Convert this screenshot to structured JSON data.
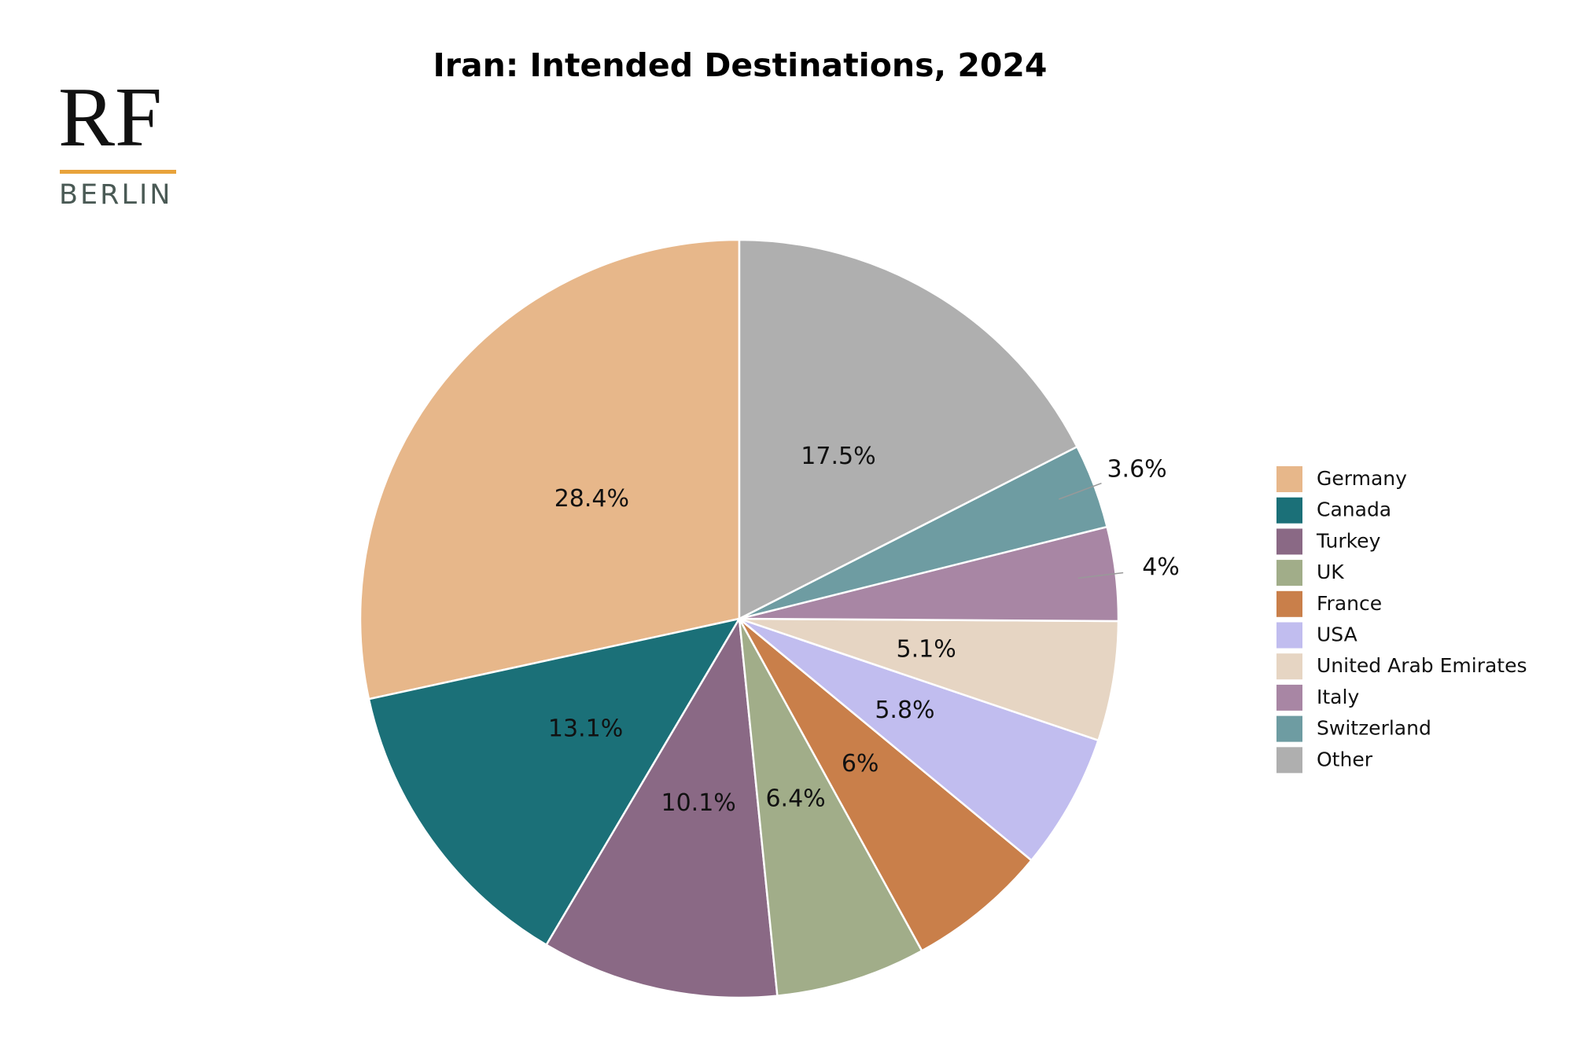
{
  "logo": {
    "mark": "RF",
    "city": "BERLIN"
  },
  "chart_data": {
    "type": "pie",
    "title": "Iran: Intended Destinations, 2024",
    "categories": [
      "Germany",
      "Canada",
      "Turkey",
      "UK",
      "France",
      "USA",
      "United Arab Emirates",
      "Italy",
      "Switzerland",
      "Other"
    ],
    "values": [
      28.4,
      13.1,
      10.1,
      6.4,
      6,
      5.8,
      5.1,
      4,
      3.6,
      17.5
    ],
    "value_labels": [
      "28.4%",
      "13.1%",
      "10.1%",
      "6.4%",
      "6%",
      "5.8%",
      "5.1%",
      "4%",
      "3.6%",
      "17.5%"
    ],
    "colors": [
      "#e7b78a",
      "#1b7078",
      "#8a6985",
      "#a1ad89",
      "#c97f4a",
      "#c1bdef",
      "#e6d5c3",
      "#a886a4",
      "#6e9ca2",
      "#afafaf"
    ],
    "legend": "right"
  }
}
